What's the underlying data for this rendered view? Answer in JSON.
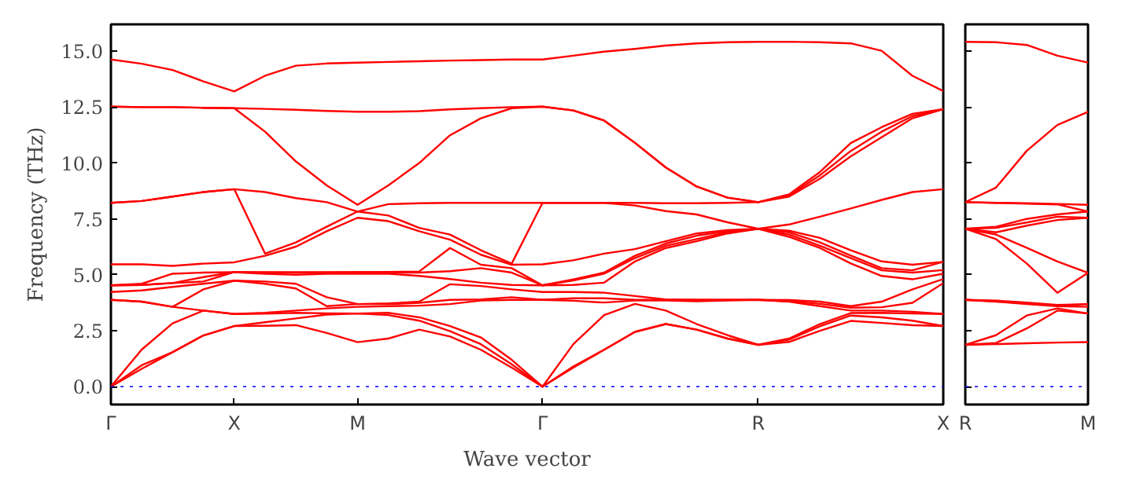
{
  "chart_data": [
    {
      "type": "line",
      "xlabel": "Wave vector",
      "ylabel": "Frequency (THz)",
      "grid": false,
      "ylim": [
        -0.8,
        16.2
      ],
      "yticks": [
        {
          "value": 0,
          "label": "0.0"
        },
        {
          "value": 2.5,
          "label": "2.5"
        },
        {
          "value": 5,
          "label": "5.0"
        },
        {
          "value": 7.5,
          "label": "7.5"
        },
        {
          "value": 10,
          "label": "10.0"
        },
        {
          "value": 12.5,
          "label": "12.5"
        },
        {
          "value": 15,
          "label": "15.0"
        }
      ],
      "ref_lines": [
        {
          "axis": "y",
          "value": 0,
          "color": "#0000ff",
          "line_style": "dotted"
        }
      ],
      "categories": [
        "Γ",
        null,
        null,
        null,
        "X",
        null,
        null,
        null,
        "M",
        null,
        null,
        null,
        null,
        null,
        "Γ",
        null,
        null,
        null,
        null,
        null,
        null,
        "R",
        null,
        null,
        null,
        null,
        null,
        "X"
      ],
      "series": [
        {
          "color": "#ff0000",
          "values": [
            0,
            0.8,
            1.54,
            2.29,
            2.71,
            2.72,
            2.75,
            2.4,
            1.99,
            2.15,
            2.55,
            2.24,
            1.65,
            0.85,
            0,
            0.85,
            1.65,
            2.45,
            2.8,
            2.55,
            2.15,
            1.87,
            2.0,
            2.5,
            2.94,
            2.85,
            2.75,
            2.71
          ]
        },
        {
          "color": "#ff0000",
          "values": [
            0,
            0.96,
            1.54,
            2.29,
            2.71,
            2.88,
            3.05,
            3.22,
            3.27,
            3.2,
            2.95,
            2.48,
            1.9,
            1.0,
            0,
            0.9,
            1.65,
            2.45,
            2.8,
            2.55,
            2.15,
            1.87,
            2.1,
            2.7,
            3.18,
            3.1,
            2.95,
            2.71
          ]
        },
        {
          "color": "#ff0000",
          "values": [
            0,
            1.66,
            2.83,
            3.4,
            3.25,
            3.26,
            3.3,
            3.28,
            3.27,
            3.3,
            3.1,
            2.71,
            2.2,
            1.2,
            0,
            1.9,
            3.2,
            3.7,
            3.4,
            2.8,
            2.3,
            1.87,
            2.15,
            2.8,
            3.29,
            3.3,
            3.27,
            3.25
          ]
        },
        {
          "color": "#ff0000",
          "values": [
            3.88,
            3.8,
            3.57,
            3.4,
            3.25,
            3.3,
            3.4,
            3.5,
            3.57,
            3.6,
            3.62,
            3.69,
            3.85,
            3.88,
            3.88,
            3.84,
            3.76,
            3.85,
            3.85,
            3.82,
            3.85,
            3.88,
            3.8,
            3.6,
            3.4,
            3.4,
            3.35,
            3.25
          ]
        },
        {
          "color": "#ff0000",
          "values": [
            3.88,
            3.8,
            3.57,
            4.35,
            4.74,
            4.6,
            4.39,
            3.6,
            3.69,
            3.69,
            3.75,
            3.88,
            3.9,
            4.0,
            3.88,
            3.95,
            3.95,
            3.88,
            3.88,
            3.88,
            3.88,
            3.88,
            3.82,
            3.7,
            3.53,
            3.55,
            3.75,
            4.63
          ]
        },
        {
          "color": "#ff0000",
          "values": [
            4.23,
            4.3,
            4.46,
            4.6,
            4.74,
            4.7,
            4.6,
            4.0,
            3.69,
            3.72,
            3.8,
            4.58,
            4.5,
            4.35,
            4.23,
            4.23,
            4.2,
            4.05,
            3.9,
            3.88,
            3.88,
            3.88,
            3.87,
            3.8,
            3.6,
            3.8,
            4.35,
            4.81
          ]
        },
        {
          "color": "#ff0000",
          "values": [
            4.53,
            4.55,
            4.63,
            4.7,
            5.12,
            5.05,
            5.0,
            5.05,
            5.05,
            5.05,
            4.95,
            4.81,
            4.65,
            4.55,
            4.53,
            4.55,
            4.65,
            5.6,
            6.2,
            6.5,
            6.85,
            7.06,
            6.7,
            6.2,
            5.51,
            4.95,
            4.8,
            5.05
          ]
        },
        {
          "color": "#ff0000",
          "values": [
            4.53,
            4.55,
            4.63,
            4.9,
            5.12,
            5.1,
            5.09,
            5.1,
            5.12,
            5.1,
            5.1,
            5.16,
            5.3,
            5.1,
            4.53,
            4.75,
            5.05,
            5.75,
            6.3,
            6.6,
            6.9,
            7.06,
            6.8,
            6.3,
            5.75,
            5.2,
            5.1,
            5.21
          ]
        },
        {
          "color": "#ff0000",
          "values": [
            4.53,
            4.6,
            5.05,
            5.1,
            5.12,
            5.12,
            5.12,
            5.12,
            5.12,
            5.13,
            5.15,
            6.2,
            5.45,
            5.3,
            4.53,
            4.8,
            5.1,
            5.85,
            6.4,
            6.75,
            6.95,
            7.06,
            6.9,
            6.45,
            5.86,
            5.3,
            5.2,
            5.58
          ]
        },
        {
          "color": "#ff0000",
          "values": [
            5.47,
            5.47,
            5.4,
            5.5,
            5.56,
            5.85,
            6.26,
            6.95,
            7.55,
            7.4,
            6.95,
            6.57,
            5.9,
            5.45,
            5.47,
            5.65,
            5.95,
            6.15,
            6.5,
            6.85,
            7.0,
            7.06,
            6.97,
            6.65,
            6.1,
            5.6,
            5.45,
            5.58
          ]
        },
        {
          "color": "#ff0000",
          "values": [
            8.22,
            8.3,
            8.5,
            8.7,
            8.83,
            5.95,
            6.45,
            7.15,
            7.83,
            7.65,
            7.1,
            6.8,
            6.1,
            5.5,
            8.22,
            8.22,
            8.22,
            8.1,
            7.85,
            7.7,
            7.35,
            7.06,
            7.25,
            7.6,
            7.97,
            8.35,
            8.7,
            8.83
          ]
        },
        {
          "color": "#ff0000",
          "values": [
            8.22,
            8.3,
            8.5,
            8.7,
            8.83,
            8.7,
            8.43,
            8.25,
            7.83,
            8.16,
            8.2,
            8.22,
            8.22,
            8.22,
            8.22,
            8.22,
            8.22,
            8.22,
            8.2,
            8.2,
            8.22,
            8.25,
            8.5,
            9.3,
            10.3,
            11.15,
            12.0,
            12.41
          ]
        },
        {
          "color": "#ff0000",
          "values": [
            12.52,
            12.5,
            12.5,
            12.47,
            12.45,
            11.4,
            10.07,
            9.0,
            8.13,
            9.0,
            10.0,
            11.24,
            12.0,
            12.45,
            12.52,
            12.35,
            11.9,
            10.9,
            9.8,
            8.95,
            8.45,
            8.25,
            8.55,
            9.45,
            10.54,
            11.4,
            12.1,
            12.41
          ]
        },
        {
          "color": "#ff0000",
          "values": [
            12.52,
            12.5,
            12.5,
            12.47,
            12.45,
            12.42,
            12.38,
            12.33,
            12.29,
            12.29,
            12.32,
            12.4,
            12.45,
            12.5,
            12.52,
            12.35,
            11.9,
            10.9,
            9.8,
            8.95,
            8.45,
            8.25,
            8.6,
            9.6,
            10.89,
            11.6,
            12.2,
            12.41
          ]
        },
        {
          "color": "#ff0000",
          "values": [
            14.63,
            14.44,
            14.16,
            13.65,
            13.2,
            13.9,
            14.35,
            14.45,
            14.49,
            14.52,
            14.55,
            14.58,
            14.6,
            14.63,
            14.63,
            14.8,
            14.98,
            15.1,
            15.25,
            15.35,
            15.4,
            15.42,
            15.42,
            15.4,
            15.35,
            15.02,
            13.9,
            13.22
          ]
        }
      ]
    },
    {
      "type": "line",
      "grid": false,
      "tick_labels": "x",
      "ylim": [
        -0.8,
        16.2
      ],
      "yticks": [
        {
          "value": 0,
          "label": null
        },
        {
          "value": 2.5,
          "label": null
        },
        {
          "value": 5,
          "label": null
        },
        {
          "value": 7.5,
          "label": null
        },
        {
          "value": 10,
          "label": null
        },
        {
          "value": 12.5,
          "label": null
        },
        {
          "value": 15,
          "label": null
        }
      ],
      "ref_lines": [
        {
          "axis": "y",
          "value": 0,
          "color": "#0000ff",
          "line_style": "dotted"
        }
      ],
      "categories": [
        "R",
        null,
        null,
        null,
        "M"
      ],
      "series": [
        {
          "color": "#ff0000",
          "values": [
            1.87,
            1.9,
            1.94,
            1.97,
            1.99
          ]
        },
        {
          "color": "#ff0000",
          "values": [
            1.87,
            1.95,
            2.6,
            3.4,
            3.27
          ]
        },
        {
          "color": "#ff0000",
          "values": [
            1.87,
            2.3,
            3.18,
            3.5,
            3.27
          ]
        },
        {
          "color": "#ff0000",
          "values": [
            3.88,
            3.8,
            3.69,
            3.6,
            3.57
          ]
        },
        {
          "color": "#ff0000",
          "values": [
            3.88,
            3.82,
            3.72,
            3.62,
            3.69
          ]
        },
        {
          "color": "#ff0000",
          "values": [
            3.88,
            3.85,
            3.76,
            3.65,
            3.69
          ]
        },
        {
          "color": "#ff0000",
          "values": [
            7.06,
            6.6,
            5.51,
            4.2,
            5.09
          ]
        },
        {
          "color": "#ff0000",
          "values": [
            7.06,
            6.8,
            6.21,
            5.6,
            5.09
          ]
        },
        {
          "color": "#ff0000",
          "values": [
            7.06,
            6.9,
            7.2,
            7.45,
            7.55
          ]
        },
        {
          "color": "#ff0000",
          "values": [
            7.06,
            7.1,
            7.34,
            7.6,
            7.55
          ]
        },
        {
          "color": "#ff0000",
          "values": [
            7.06,
            7.15,
            7.5,
            7.7,
            7.83
          ]
        },
        {
          "color": "#ff0000",
          "values": [
            8.25,
            8.22,
            8.18,
            8.15,
            7.83
          ]
        },
        {
          "color": "#ff0000",
          "values": [
            8.25,
            8.22,
            8.2,
            8.17,
            8.13
          ]
        },
        {
          "color": "#ff0000",
          "values": [
            8.25,
            8.9,
            10.54,
            11.7,
            12.29
          ]
        },
        {
          "color": "#ff0000",
          "values": [
            15.42,
            15.4,
            15.28,
            14.8,
            14.49
          ]
        }
      ]
    }
  ]
}
